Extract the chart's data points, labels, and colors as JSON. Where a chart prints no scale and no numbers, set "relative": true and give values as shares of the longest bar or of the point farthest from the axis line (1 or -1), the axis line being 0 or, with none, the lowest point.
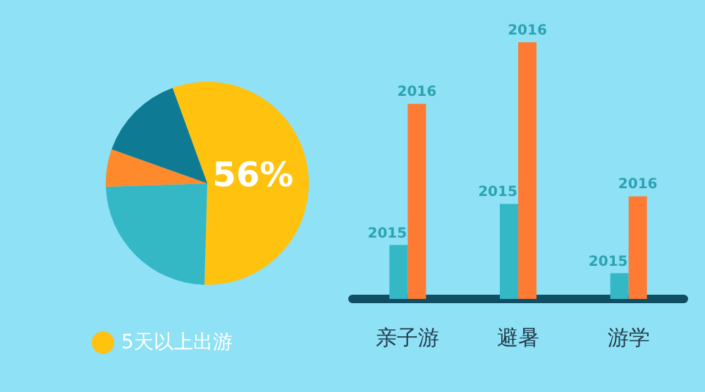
{
  "chart_data": [
    {
      "type": "pie",
      "categories": [
        "5天以上出游",
        null,
        null,
        null
      ],
      "values": [
        56,
        24,
        6,
        14
      ],
      "colors": [
        "#ffc20e",
        "#35b8c6",
        "#ff8a2b",
        "#0e7a93"
      ],
      "value_labels": [
        "56%",
        null,
        null,
        null
      ],
      "legend": "bottom"
    },
    {
      "type": "bar",
      "relative": true,
      "categories": [
        "亲子游",
        "避暑",
        "游学"
      ],
      "series": [
        {
          "name": "2015",
          "color": "#35b8c6",
          "values": [
            0.21,
            0.37,
            0.1
          ]
        },
        {
          "name": "2016",
          "color": "#ff7a33",
          "values": [
            0.76,
            1,
            0.4
          ]
        }
      ]
    }
  ]
}
